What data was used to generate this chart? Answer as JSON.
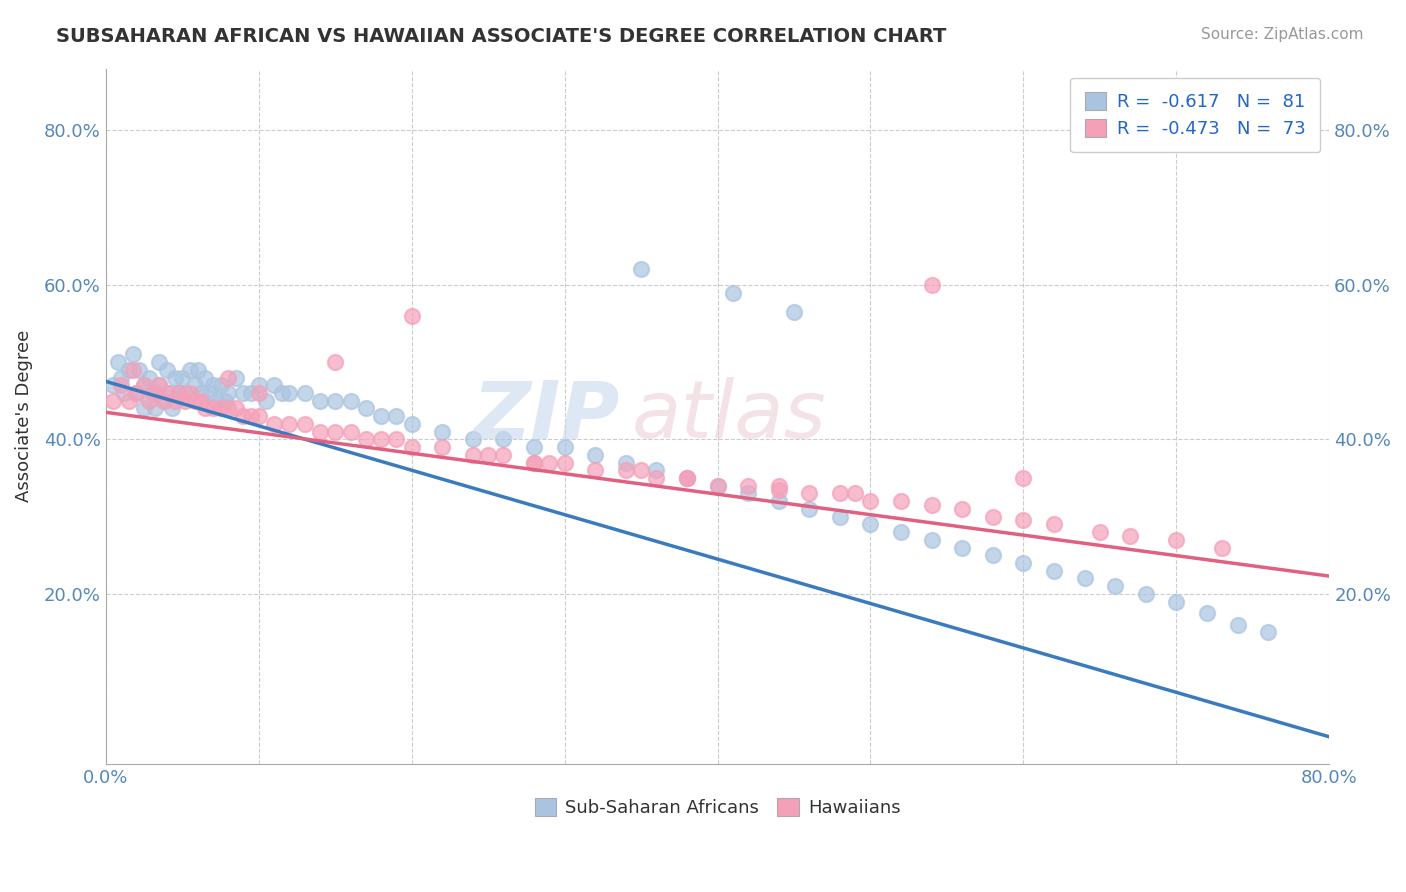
{
  "title": "SUBSAHARAN AFRICAN VS HAWAIIAN ASSOCIATE'S DEGREE CORRELATION CHART",
  "source": "Source: ZipAtlas.com",
  "ylabel": "Associate's Degree",
  "xlim": [
    0.0,
    0.8
  ],
  "ylim": [
    -0.02,
    0.88
  ],
  "x_ticks": [
    0.0,
    0.1,
    0.2,
    0.3,
    0.4,
    0.5,
    0.6,
    0.7,
    0.8
  ],
  "x_tick_labels": [
    "0.0%",
    "",
    "",
    "",
    "",
    "",
    "",
    "",
    "80.0%"
  ],
  "y_ticks": [
    0.2,
    0.4,
    0.6,
    0.8
  ],
  "y_tick_labels": [
    "20.0%",
    "40.0%",
    "60.0%",
    "80.0%"
  ],
  "blue_color": "#aac4e0",
  "pink_color": "#f4a0b8",
  "blue_line_color": "#3a7abf",
  "pink_line_color": "#e06080",
  "legend_r_blue": "R =  -0.617",
  "legend_n_blue": "N =  81",
  "legend_r_pink": "R =  -0.473",
  "legend_n_pink": "N =  73",
  "blue_intercept": 0.475,
  "blue_slope": -0.575,
  "pink_intercept": 0.435,
  "pink_slope": -0.265,
  "blue_x": [
    0.005,
    0.008,
    0.01,
    0.012,
    0.015,
    0.018,
    0.02,
    0.022,
    0.025,
    0.025,
    0.028,
    0.03,
    0.032,
    0.035,
    0.035,
    0.038,
    0.04,
    0.042,
    0.043,
    0.045,
    0.048,
    0.05,
    0.052,
    0.055,
    0.058,
    0.06,
    0.062,
    0.065,
    0.068,
    0.07,
    0.072,
    0.075,
    0.078,
    0.08,
    0.085,
    0.09,
    0.095,
    0.1,
    0.105,
    0.11,
    0.115,
    0.12,
    0.13,
    0.14,
    0.15,
    0.16,
    0.17,
    0.18,
    0.19,
    0.2,
    0.22,
    0.24,
    0.26,
    0.28,
    0.3,
    0.32,
    0.34,
    0.36,
    0.38,
    0.4,
    0.42,
    0.44,
    0.46,
    0.48,
    0.5,
    0.52,
    0.54,
    0.56,
    0.58,
    0.6,
    0.62,
    0.64,
    0.66,
    0.68,
    0.7,
    0.72,
    0.74,
    0.76,
    0.35,
    0.41,
    0.45
  ],
  "blue_y": [
    0.47,
    0.5,
    0.48,
    0.46,
    0.49,
    0.51,
    0.46,
    0.49,
    0.47,
    0.44,
    0.48,
    0.46,
    0.44,
    0.5,
    0.47,
    0.45,
    0.49,
    0.46,
    0.44,
    0.48,
    0.46,
    0.48,
    0.46,
    0.49,
    0.47,
    0.49,
    0.46,
    0.48,
    0.46,
    0.47,
    0.45,
    0.47,
    0.45,
    0.46,
    0.48,
    0.46,
    0.46,
    0.47,
    0.45,
    0.47,
    0.46,
    0.46,
    0.46,
    0.45,
    0.45,
    0.45,
    0.44,
    0.43,
    0.43,
    0.42,
    0.41,
    0.4,
    0.4,
    0.39,
    0.39,
    0.38,
    0.37,
    0.36,
    0.35,
    0.34,
    0.33,
    0.32,
    0.31,
    0.3,
    0.29,
    0.28,
    0.27,
    0.26,
    0.25,
    0.24,
    0.23,
    0.22,
    0.21,
    0.2,
    0.19,
    0.175,
    0.16,
    0.15,
    0.62,
    0.59,
    0.565
  ],
  "pink_x": [
    0.005,
    0.01,
    0.015,
    0.018,
    0.02,
    0.025,
    0.028,
    0.032,
    0.035,
    0.038,
    0.04,
    0.045,
    0.048,
    0.052,
    0.055,
    0.058,
    0.062,
    0.065,
    0.07,
    0.075,
    0.08,
    0.085,
    0.09,
    0.095,
    0.1,
    0.11,
    0.12,
    0.13,
    0.14,
    0.15,
    0.16,
    0.17,
    0.18,
    0.19,
    0.2,
    0.22,
    0.24,
    0.25,
    0.26,
    0.28,
    0.29,
    0.3,
    0.32,
    0.34,
    0.35,
    0.36,
    0.38,
    0.4,
    0.42,
    0.44,
    0.46,
    0.48,
    0.5,
    0.52,
    0.54,
    0.56,
    0.58,
    0.6,
    0.62,
    0.65,
    0.67,
    0.7,
    0.73,
    0.2,
    0.15,
    0.08,
    0.1,
    0.28,
    0.38,
    0.44,
    0.49,
    0.54,
    0.6
  ],
  "pink_y": [
    0.45,
    0.47,
    0.45,
    0.49,
    0.46,
    0.47,
    0.45,
    0.46,
    0.47,
    0.45,
    0.46,
    0.45,
    0.46,
    0.45,
    0.46,
    0.45,
    0.45,
    0.44,
    0.44,
    0.44,
    0.44,
    0.44,
    0.43,
    0.43,
    0.43,
    0.42,
    0.42,
    0.42,
    0.41,
    0.41,
    0.41,
    0.4,
    0.4,
    0.4,
    0.39,
    0.39,
    0.38,
    0.38,
    0.38,
    0.37,
    0.37,
    0.37,
    0.36,
    0.36,
    0.36,
    0.35,
    0.35,
    0.34,
    0.34,
    0.335,
    0.33,
    0.33,
    0.32,
    0.32,
    0.315,
    0.31,
    0.3,
    0.295,
    0.29,
    0.28,
    0.275,
    0.27,
    0.26,
    0.56,
    0.5,
    0.48,
    0.46,
    0.37,
    0.35,
    0.34,
    0.33,
    0.6,
    0.35
  ]
}
